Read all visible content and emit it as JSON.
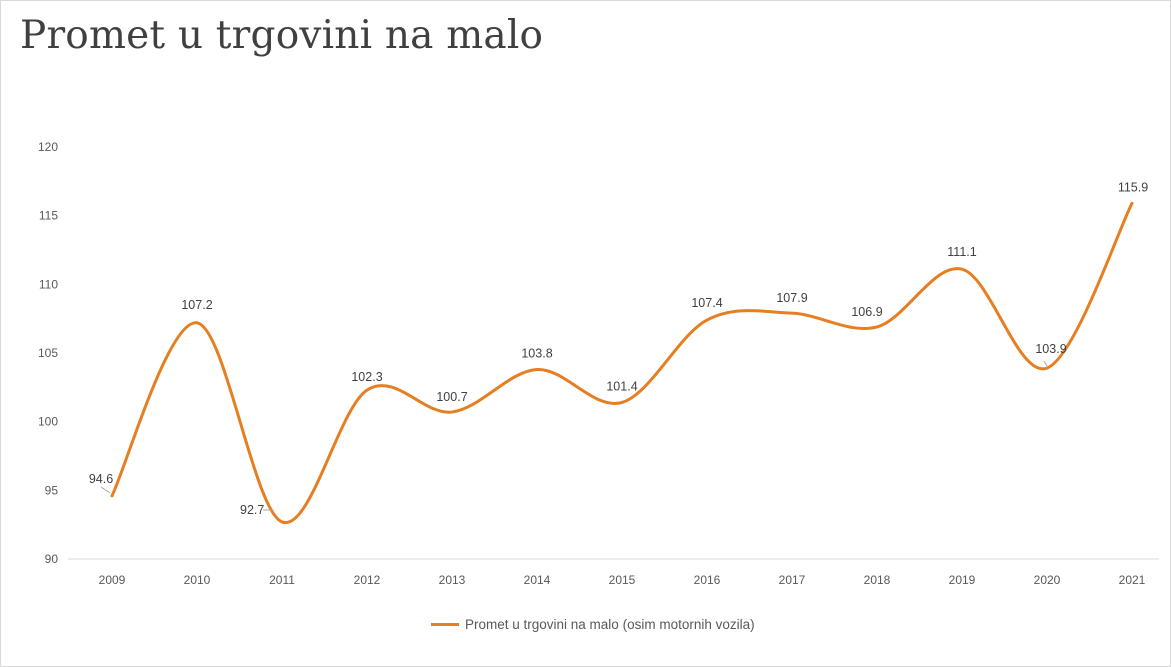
{
  "chart_data": {
    "type": "line",
    "title": "Promet u trgovini na malo",
    "xlabel": "",
    "ylabel": "",
    "categories": [
      "2009",
      "2010",
      "2011",
      "2012",
      "2013",
      "2014",
      "2015",
      "2016",
      "2017",
      "2018",
      "2019",
      "2020",
      "2021"
    ],
    "series": [
      {
        "name": "Promet u trgovini na malo (osim motornih vozila)",
        "values": [
          94.6,
          107.2,
          92.7,
          102.3,
          100.7,
          103.8,
          101.4,
          107.4,
          107.9,
          106.9,
          111.1,
          103.9,
          115.9
        ],
        "color": "#e67e22"
      }
    ],
    "ylim": [
      90,
      120
    ],
    "yticks": [
      "90",
      "95",
      "100",
      "105",
      "110",
      "115",
      "120"
    ],
    "data_labels": [
      "94.6",
      "107.2",
      "92.7",
      "102.3",
      "100.7",
      "103.8",
      "101.4",
      "107.4",
      "107.9",
      "106.9",
      "111.1",
      "103.9",
      "115.9"
    ],
    "grid": false,
    "smooth": true,
    "legend_position": "bottom"
  }
}
